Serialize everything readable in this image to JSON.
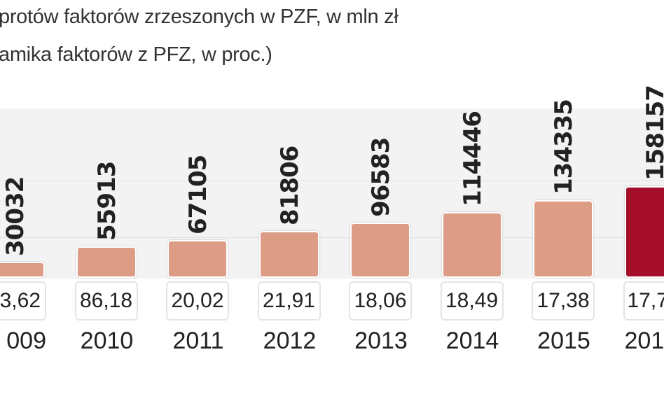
{
  "chart_data": {
    "type": "bar",
    "title_lines": [
      "protów faktorów zrzeszonych w PZF, w mln zł",
      "amika faktorów z PFZ, w proc.)"
    ],
    "categories": [
      "009",
      "2010",
      "2011",
      "2012",
      "2013",
      "2014",
      "2015",
      "201"
    ],
    "values": [
      30032,
      55913,
      67105,
      81806,
      96583,
      114446,
      134335,
      158157
    ],
    "value_labels": [
      "30032",
      "55913",
      "67105",
      "81806",
      "96583",
      "114446",
      "134335",
      "158157"
    ],
    "growth_labels": [
      "3,62",
      "86,18",
      "20,02",
      "21,91",
      "18,06",
      "18,49",
      "17,38",
      "17,7"
    ],
    "colors": {
      "bar": "#dd9c86",
      "highlight": "#a50e28"
    },
    "highlight_index": 7,
    "grid": true
  }
}
